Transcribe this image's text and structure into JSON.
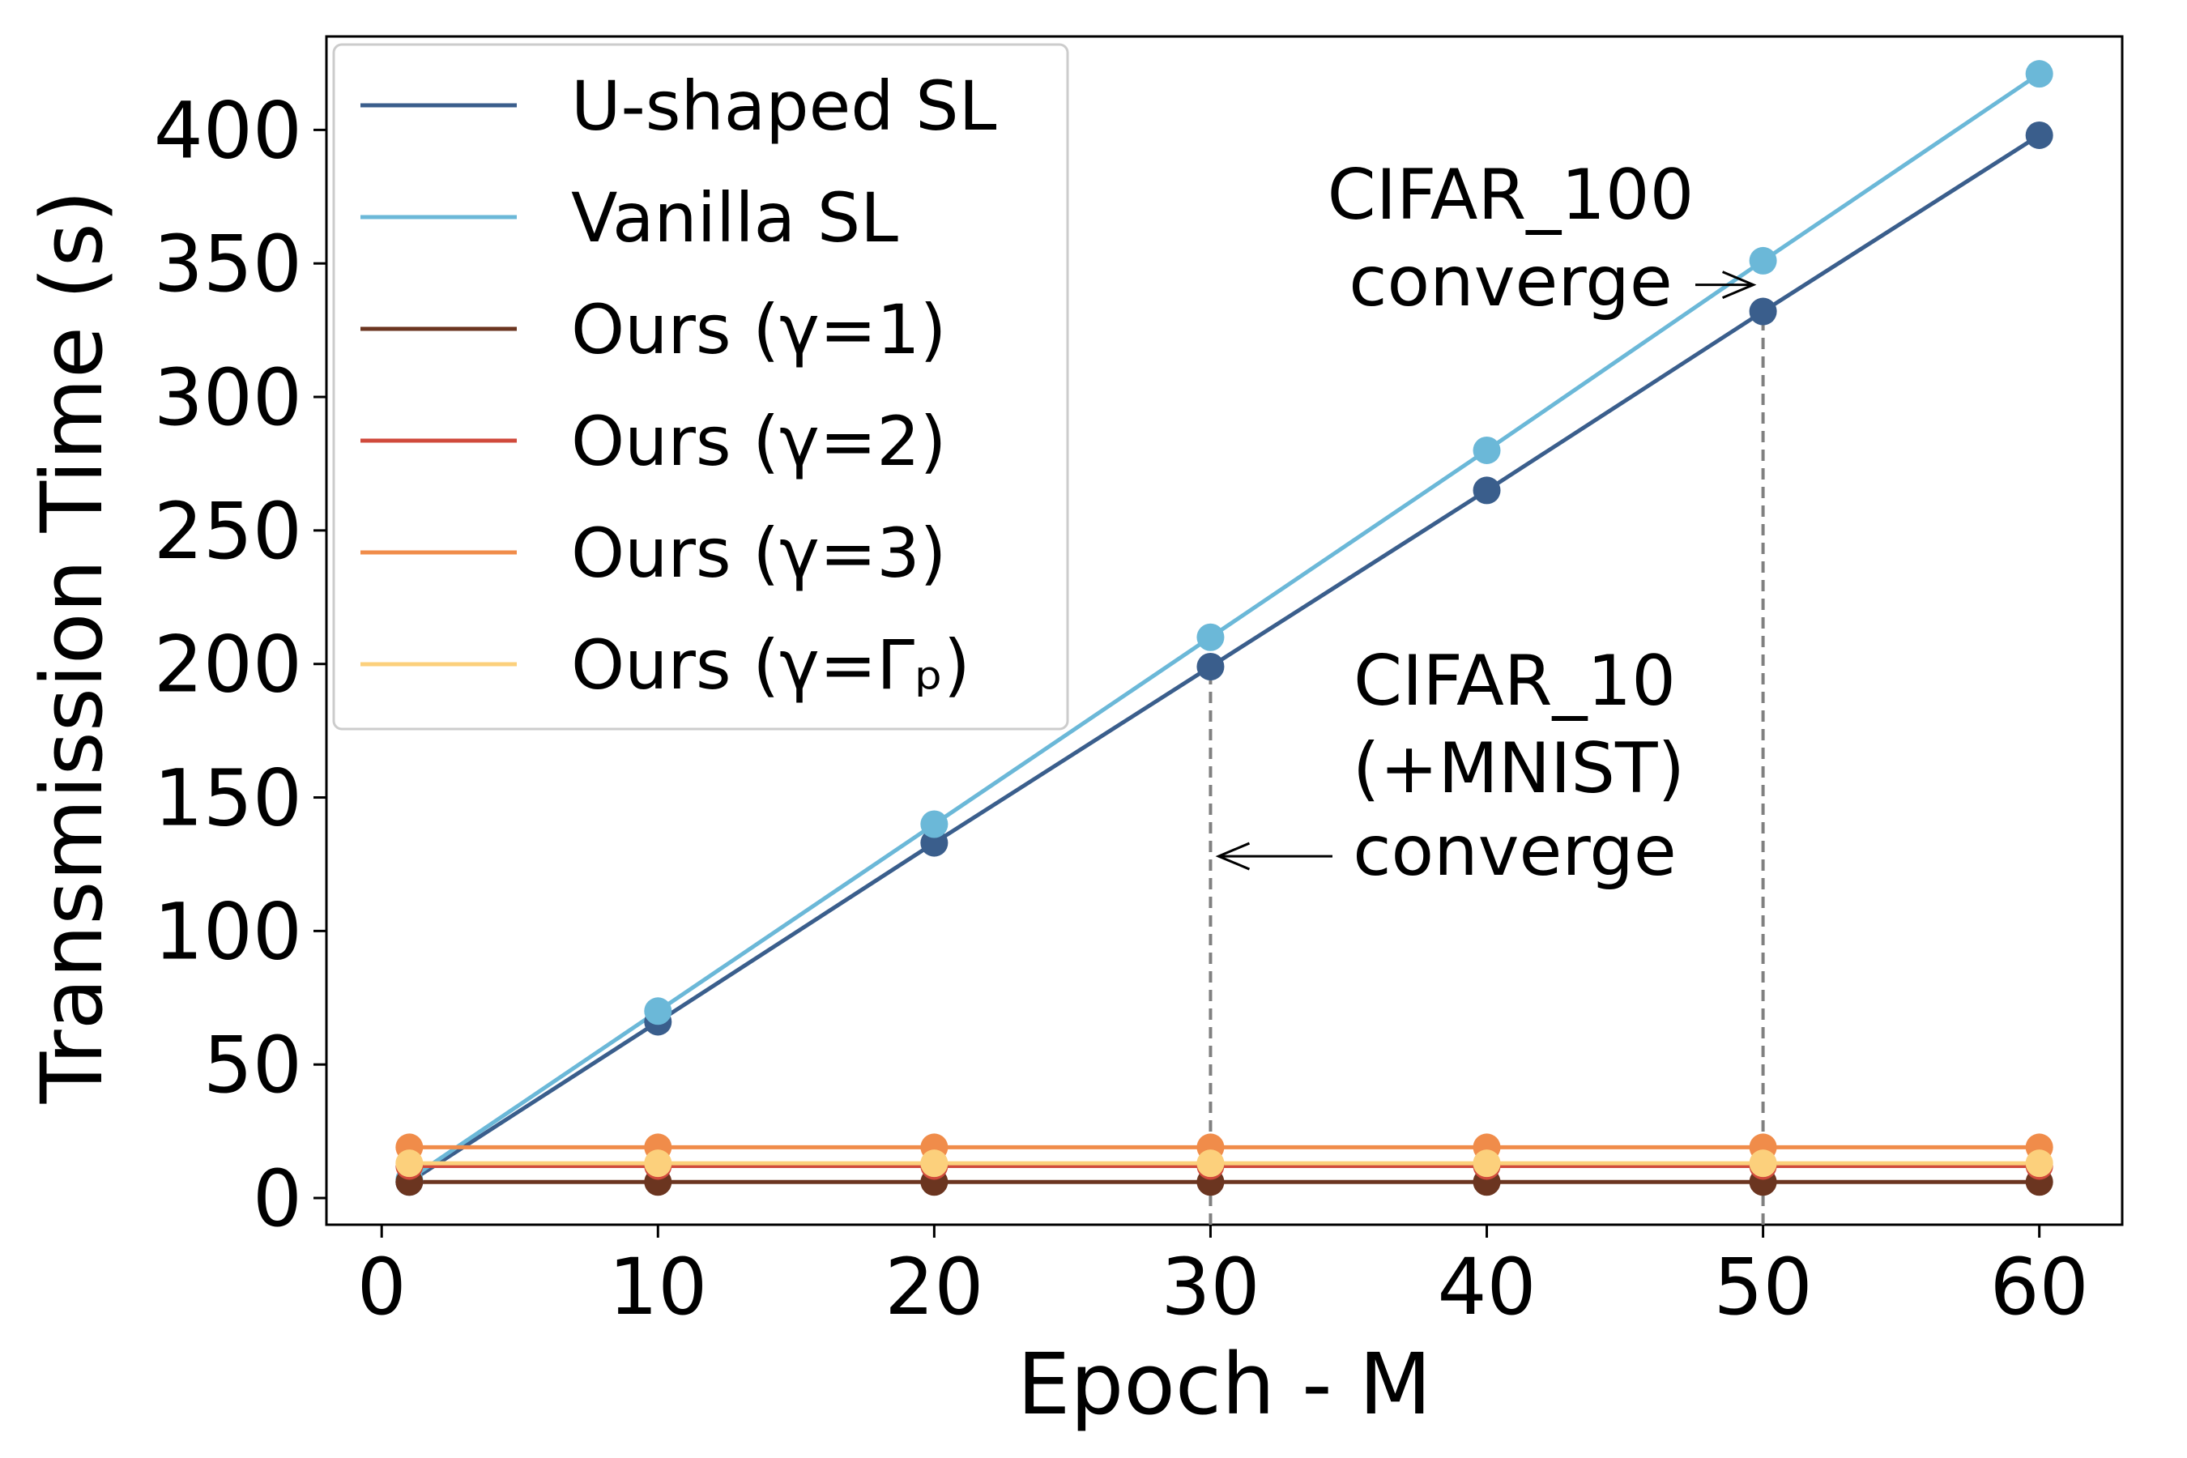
{
  "chart_data": {
    "type": "line",
    "title": "",
    "xlabel": "Epoch - M",
    "ylabel": "Transmission Time (s)",
    "xlim": [
      -2,
      63
    ],
    "ylim": [
      -10,
      435
    ],
    "x_ticks": [
      0,
      10,
      20,
      30,
      40,
      50,
      60
    ],
    "y_ticks": [
      0,
      50,
      100,
      150,
      200,
      250,
      300,
      350,
      400
    ],
    "grid": false,
    "legend_position": "top-left",
    "series": [
      {
        "name": "U-shaped SL",
        "color": "#3a5e8c",
        "x": [
          1,
          10,
          20,
          30,
          40,
          50,
          60
        ],
        "values": [
          6,
          66,
          133,
          199,
          265,
          332,
          398
        ]
      },
      {
        "name": "Vanilla SL",
        "color": "#6bb8d8",
        "x": [
          1,
          10,
          20,
          30,
          40,
          50,
          60
        ],
        "values": [
          7,
          70,
          140,
          210,
          280,
          351,
          421
        ]
      },
      {
        "name": "Ours (γ=1)",
        "color": "#6b3520",
        "x": [
          1,
          10,
          20,
          30,
          40,
          50,
          60
        ],
        "values": [
          6,
          6,
          6,
          6,
          6,
          6,
          6
        ]
      },
      {
        "name": "Ours (γ=2)",
        "color": "#d04a3c",
        "x": [
          1,
          10,
          20,
          30,
          40,
          50,
          60
        ],
        "values": [
          12,
          12,
          12,
          12,
          12,
          12,
          12
        ]
      },
      {
        "name": "Ours (γ=3)",
        "color": "#f08c4a",
        "x": [
          1,
          10,
          20,
          30,
          40,
          50,
          60
        ],
        "values": [
          19,
          19,
          19,
          19,
          19,
          19,
          19
        ]
      },
      {
        "name": "Ours (γ=Γₚ)",
        "color": "#fcd07c",
        "x": [
          1,
          10,
          20,
          30,
          40,
          50,
          60
        ],
        "values": [
          13,
          13,
          13,
          13,
          13,
          13,
          13
        ]
      }
    ],
    "reference_lines": [
      {
        "x": 30,
        "y_top": 199,
        "color": "#808080",
        "style": "dashed"
      },
      {
        "x": 50,
        "y_top": 332,
        "color": "#808080",
        "style": "dashed"
      }
    ],
    "annotations": [
      {
        "lines": [
          "CIFAR_100",
          "converge"
        ],
        "target_x": 50,
        "target_y": 342,
        "arrow_direction": "right"
      },
      {
        "lines": [
          "CIFAR_10",
          "(+MNIST)",
          "converge"
        ],
        "target_x": 30,
        "target_y": 128,
        "arrow_direction": "left"
      }
    ]
  }
}
